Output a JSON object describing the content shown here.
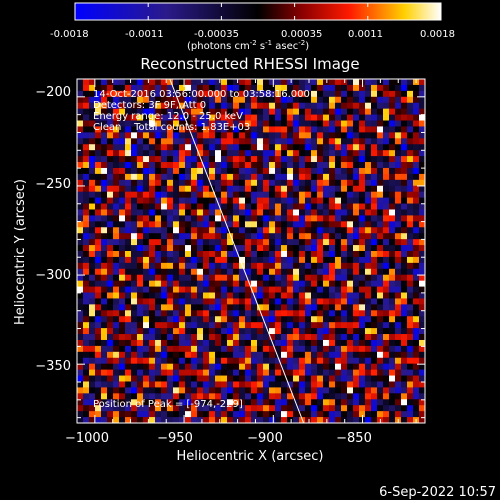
{
  "colorbar": {
    "min": -0.0018,
    "max": 0.0018,
    "ticks": [
      "-0.0018",
      "-0.0011",
      "-0.00035",
      "0.00035",
      "0.0011",
      "0.0018"
    ],
    "units_main": "(photons cm",
    "units_sup1": "-2",
    "units_mid1": " s",
    "units_sup2": "-1",
    "units_mid2": " asec",
    "units_sup3": "-2",
    "units_end": ")",
    "colormap": "blue-black-red-yellow-white"
  },
  "chart_data": {
    "type": "heatmap",
    "title": "Reconstructed RHESSI Image",
    "xlabel": "Heliocentric X (arcsec)",
    "ylabel": "Heliocentric Y (arcsec)",
    "xlim": [
      -1010,
      -815
    ],
    "ylim": [
      -383,
      -190
    ],
    "xticks": [
      -1000,
      -950,
      -900,
      -850
    ],
    "yticks": [
      -200,
      -250,
      -300,
      -350
    ],
    "xtick_labels": [
      "−1000",
      "−950",
      "−900",
      "−850"
    ],
    "ytick_labels": [
      "−200",
      "−250",
      "−300",
      "−350"
    ],
    "limb_line": [
      [
        -958,
        -190
      ],
      [
        -883,
        -383
      ]
    ],
    "peak": [
      -974,
      -229
    ],
    "annotations": {
      "time": "14-Oct-2016 03:56:00.000 to 03:58:16.000",
      "detectors": "Detectors: 3F 9F, Att 0",
      "energy": "Energy range: 12.0 - 25.0 keV",
      "method": "Clean    Total counts: 1.83E+03",
      "peak_label": "Position of Peak = [-974,-229]"
    }
  },
  "footer": {
    "timestamp": "6-Sep-2022 10:57"
  }
}
